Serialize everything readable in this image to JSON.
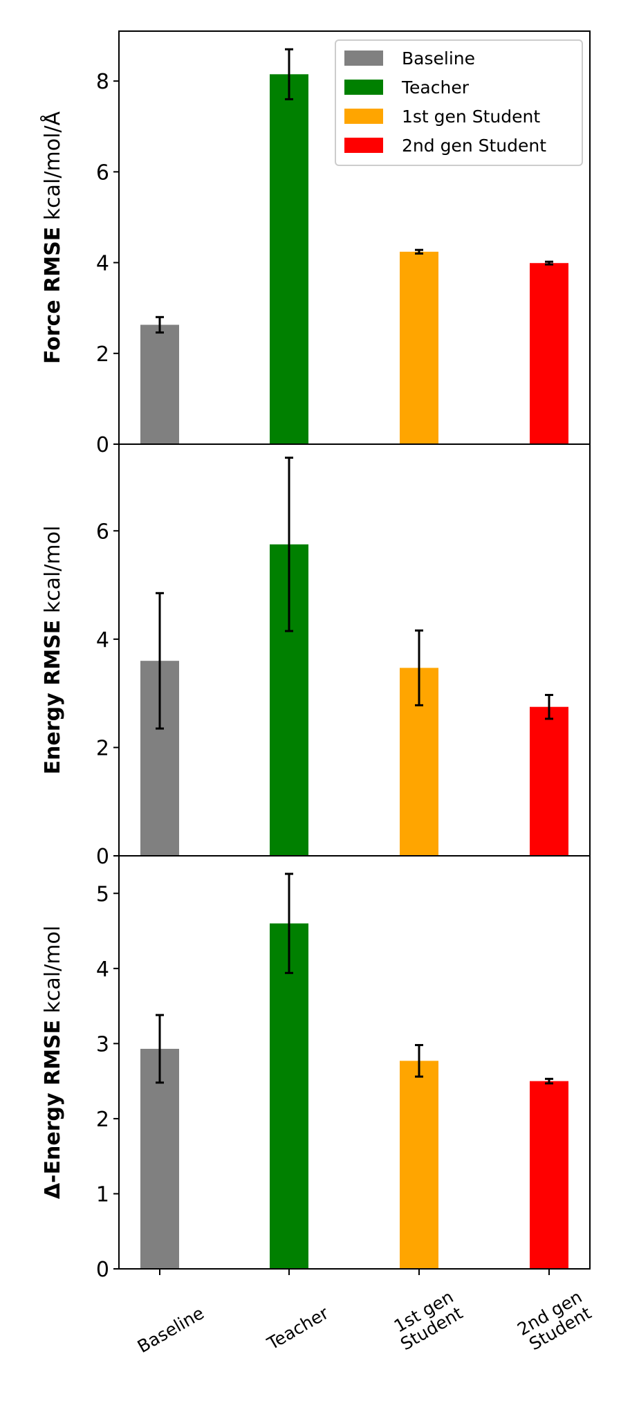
{
  "categories": [
    "Baseline",
    "Teacher",
    "1st gen\nStudent",
    "2nd gen\nStudent"
  ],
  "legend": [
    {
      "label": "Baseline",
      "color": "#808080"
    },
    {
      "label": "Teacher",
      "color": "#008000"
    },
    {
      "label": "1st gen Student",
      "color": "#FFA500"
    },
    {
      "label": "2nd gen Student",
      "color": "#FF0000"
    }
  ],
  "chart_data": [
    {
      "type": "bar",
      "ylabel_bold": "Force RMSE",
      "ylabel_unit": "kcal/mol/Å",
      "categories": [
        "Baseline",
        "Teacher",
        "1st gen Student",
        "2nd gen Student"
      ],
      "values": [
        2.63,
        8.15,
        4.24,
        3.99
      ],
      "errors": [
        0.17,
        0.55,
        0.04,
        0.03
      ],
      "ylim": [
        0,
        9.1
      ],
      "yticks": [
        0,
        2,
        4,
        6,
        8
      ],
      "legend": "top-right"
    },
    {
      "type": "bar",
      "ylabel_bold": "Energy RMSE",
      "ylabel_unit": "kcal/mol",
      "categories": [
        "Baseline",
        "Teacher",
        "1st gen Student",
        "2nd gen Student"
      ],
      "values": [
        3.6,
        5.75,
        3.47,
        2.75
      ],
      "errors": [
        1.25,
        1.6,
        0.69,
        0.22
      ],
      "ylim": [
        0,
        7.6
      ],
      "yticks": [
        0,
        2,
        4,
        6
      ]
    },
    {
      "type": "bar",
      "ylabel_bold": "Δ-Energy RMSE",
      "ylabel_unit": "kcal/mol",
      "categories": [
        "Baseline",
        "Teacher",
        "1st gen Student",
        "2nd gen Student"
      ],
      "values": [
        2.93,
        4.6,
        2.77,
        2.5
      ],
      "errors": [
        0.45,
        0.66,
        0.21,
        0.03
      ],
      "ylim": [
        0,
        5.5
      ],
      "yticks": [
        0,
        1,
        2,
        3,
        4,
        5
      ]
    }
  ]
}
